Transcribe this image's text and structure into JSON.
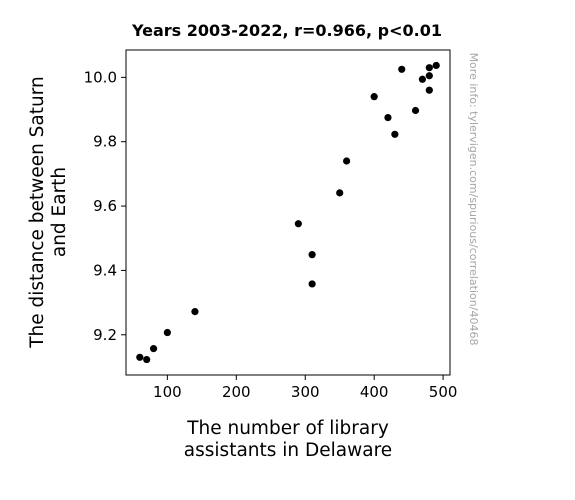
{
  "chart_data": {
    "type": "scatter",
    "title": "Years 2003-2022, r=0.966, p<0.01",
    "xlabel_lines": [
      "The number of library",
      "assistants in Delaware"
    ],
    "ylabel_lines": [
      "The distance between Saturn",
      "and Earth"
    ],
    "side_note": "More info: tylervigen.com/spurious/correlation/40468",
    "xlim": [
      40,
      510
    ],
    "ylim": [
      9.075,
      10.085
    ],
    "x_ticks": [
      100,
      200,
      300,
      400,
      500
    ],
    "y_ticks": [
      9.2,
      9.4,
      9.6,
      9.8,
      10.0
    ],
    "x_tick_labels": [
      "100",
      "200",
      "300",
      "400",
      "500"
    ],
    "y_tick_labels": [
      "9.2",
      "9.4",
      "9.6",
      "9.8",
      "10.0"
    ],
    "grid": false,
    "legend": "none",
    "marker_color": "#000000",
    "points": [
      {
        "x": 60,
        "y": 9.13
      },
      {
        "x": 70,
        "y": 9.123
      },
      {
        "x": 80,
        "y": 9.157
      },
      {
        "x": 100,
        "y": 9.207
      },
      {
        "x": 140,
        "y": 9.272
      },
      {
        "x": 290,
        "y": 9.545
      },
      {
        "x": 310,
        "y": 9.449
      },
      {
        "x": 310,
        "y": 9.358
      },
      {
        "x": 350,
        "y": 9.641
      },
      {
        "x": 360,
        "y": 9.74
      },
      {
        "x": 400,
        "y": 9.94
      },
      {
        "x": 420,
        "y": 9.875
      },
      {
        "x": 430,
        "y": 9.823
      },
      {
        "x": 440,
        "y": 10.025
      },
      {
        "x": 460,
        "y": 9.897
      },
      {
        "x": 470,
        "y": 9.994
      },
      {
        "x": 480,
        "y": 10.005
      },
      {
        "x": 480,
        "y": 9.96
      },
      {
        "x": 480,
        "y": 10.03
      },
      {
        "x": 490,
        "y": 10.037
      }
    ]
  }
}
